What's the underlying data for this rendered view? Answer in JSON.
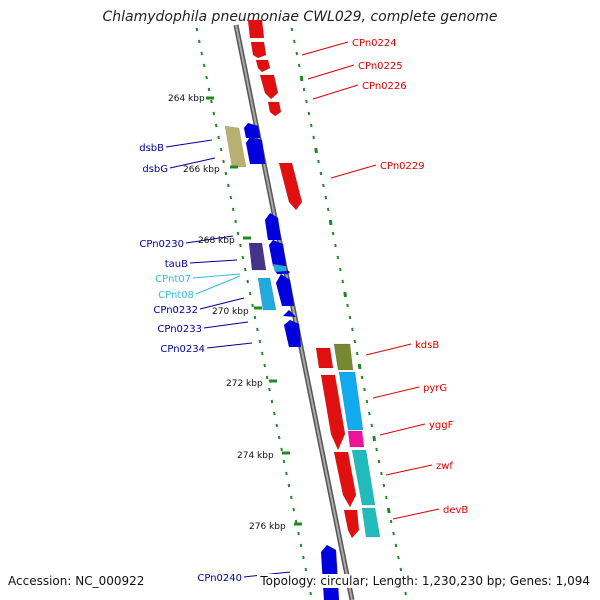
{
  "title": "Chlamydophila pneumoniae CWL029, complete genome",
  "footer": {
    "accession": "Accession: NC_000922",
    "summary": "Topology: circular; Length: 1,230,230 bp; Genes: 1,094"
  },
  "colors": {
    "forward_gene": "#0000dd",
    "reverse_gene": "#e01010",
    "forward_label": "#000099",
    "reverse_label": "#dd0000",
    "trna_label": "#33bbdd",
    "backbone": "#888888",
    "tick": "#228822"
  },
  "ruler": [
    {
      "label": "264 kbp"
    },
    {
      "label": "266 kbp"
    },
    {
      "label": "268 kbp"
    },
    {
      "label": "270 kbp"
    },
    {
      "label": "272 kbp"
    },
    {
      "label": "274 kbp"
    },
    {
      "label": "276 kbp"
    }
  ],
  "left_labels": [
    {
      "text": "dsbB",
      "kind": "forward"
    },
    {
      "text": "dsbG",
      "kind": "forward"
    },
    {
      "text": "CPn0230",
      "kind": "forward"
    },
    {
      "text": "tauB",
      "kind": "forward"
    },
    {
      "text": "CPnt07",
      "kind": "trna"
    },
    {
      "text": "CPnt08",
      "kind": "trna"
    },
    {
      "text": "CPn0232",
      "kind": "forward"
    },
    {
      "text": "CPn0233",
      "kind": "forward"
    },
    {
      "text": "CPn0234",
      "kind": "forward"
    },
    {
      "text": "CPn0240",
      "kind": "forward"
    }
  ],
  "right_labels": [
    {
      "text": "CPn0224"
    },
    {
      "text": "CPn0225"
    },
    {
      "text": "CPn0226"
    },
    {
      "text": "CPn0229"
    },
    {
      "text": "kdsB"
    },
    {
      "text": "pyrG"
    },
    {
      "text": "yggF"
    },
    {
      "text": "zwf"
    },
    {
      "text": "devB"
    }
  ]
}
